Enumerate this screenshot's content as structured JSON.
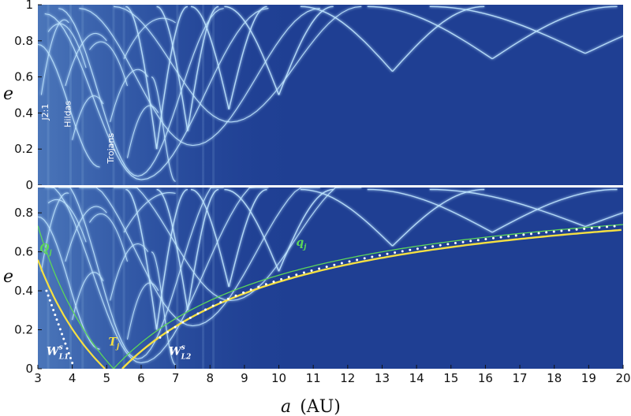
{
  "colors": {
    "background": "#1f3f93",
    "ridge": "#bfe6ff",
    "yellow_curve": "#f5e042",
    "green_curve": "#5cd659",
    "white_dots": "#ffffff"
  },
  "chart_data": [
    {
      "type": "heatmap",
      "panel": "top",
      "ylabel": "e",
      "ylim": [
        0,
        1
      ],
      "yticks": [
        "0",
        "0.2",
        "0.4",
        "0.6",
        "0.8",
        "1"
      ],
      "xlim": [
        3,
        20
      ],
      "annotations": [
        {
          "text": "J2:1",
          "a": 3.3,
          "e": 0.36
        },
        {
          "text": "Hildas",
          "a": 3.95,
          "e": 0.32
        },
        {
          "text": "Trojans",
          "a": 5.2,
          "e": 0.12
        }
      ],
      "ridge_families": [
        {
          "type": "arch",
          "centers": [
            10.0,
            13.3,
            16.2,
            18.9
          ],
          "e_min": [
            0.5,
            0.63,
            0.7,
            0.73
          ]
        },
        {
          "type": "v",
          "centers": [
            5.9,
            7.5,
            8.6
          ],
          "e_min": [
            0.05,
            0.22,
            0.35
          ]
        }
      ]
    },
    {
      "type": "heatmap",
      "panel": "bottom",
      "ylabel": "e",
      "ylim": [
        0,
        0.93
      ],
      "yticks": [
        "0",
        "0.2",
        "0.4",
        "0.6",
        "0.8"
      ],
      "xlim": [
        3,
        20
      ],
      "xlabel_italic": "a",
      "xlabel_unit": "(AU)",
      "xticks": [
        "3",
        "4",
        "5",
        "6",
        "7",
        "8",
        "9",
        "10",
        "11",
        "12",
        "13",
        "14",
        "15",
        "16",
        "17",
        "18",
        "19",
        "20"
      ],
      "curve_labels": [
        {
          "text": "Q",
          "sub": "j",
          "color": "#5cd659",
          "a": 3.05,
          "e": 0.6
        },
        {
          "text": "q",
          "sub": "j",
          "color": "#5cd659",
          "a": 10.5,
          "e": 0.63
        },
        {
          "text": "T",
          "sub": "j",
          "color": "#f5e042",
          "a": 5.05,
          "e": 0.12
        },
        {
          "text": "W",
          "sup": "s",
          "sub": "L1",
          "color": "#ffffff",
          "a": 3.25,
          "e": 0.07
        },
        {
          "text": "W",
          "sup": "s",
          "sub": "L2",
          "color": "#ffffff",
          "a": 6.8,
          "e": 0.07
        }
      ]
    }
  ]
}
